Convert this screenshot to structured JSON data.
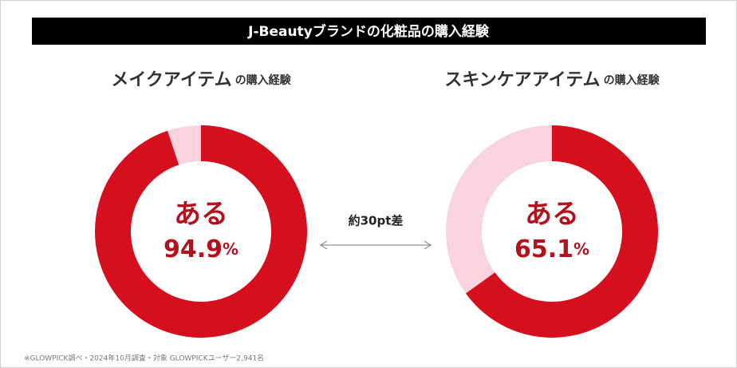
{
  "header": {
    "title": "J-Beautyブランドの化粧品の購入経験"
  },
  "chart_data": [
    {
      "type": "pie",
      "donut": true,
      "title": "メイクアイテム",
      "title_suffix": "の購入経験",
      "categories": [
        "ある",
        null
      ],
      "values": [
        94.9,
        5.1
      ],
      "value_labels": [
        "94.9%",
        null
      ],
      "colors": [
        "#d60f1f",
        "#f9d3de"
      ]
    },
    {
      "type": "pie",
      "donut": true,
      "title": "スキンケアアイテム",
      "title_suffix": "の購入経験",
      "categories": [
        "ある",
        null
      ],
      "values": [
        65.1,
        34.9
      ],
      "value_labels": [
        "65.1%",
        null
      ],
      "colors": [
        "#d60f1f",
        "#f9d3de"
      ]
    }
  ],
  "annotation": "約30pt差",
  "footnote": "※GLOWPICK調べ・2024年10月調査・対象 GLOWPICKユーザー2,941名"
}
